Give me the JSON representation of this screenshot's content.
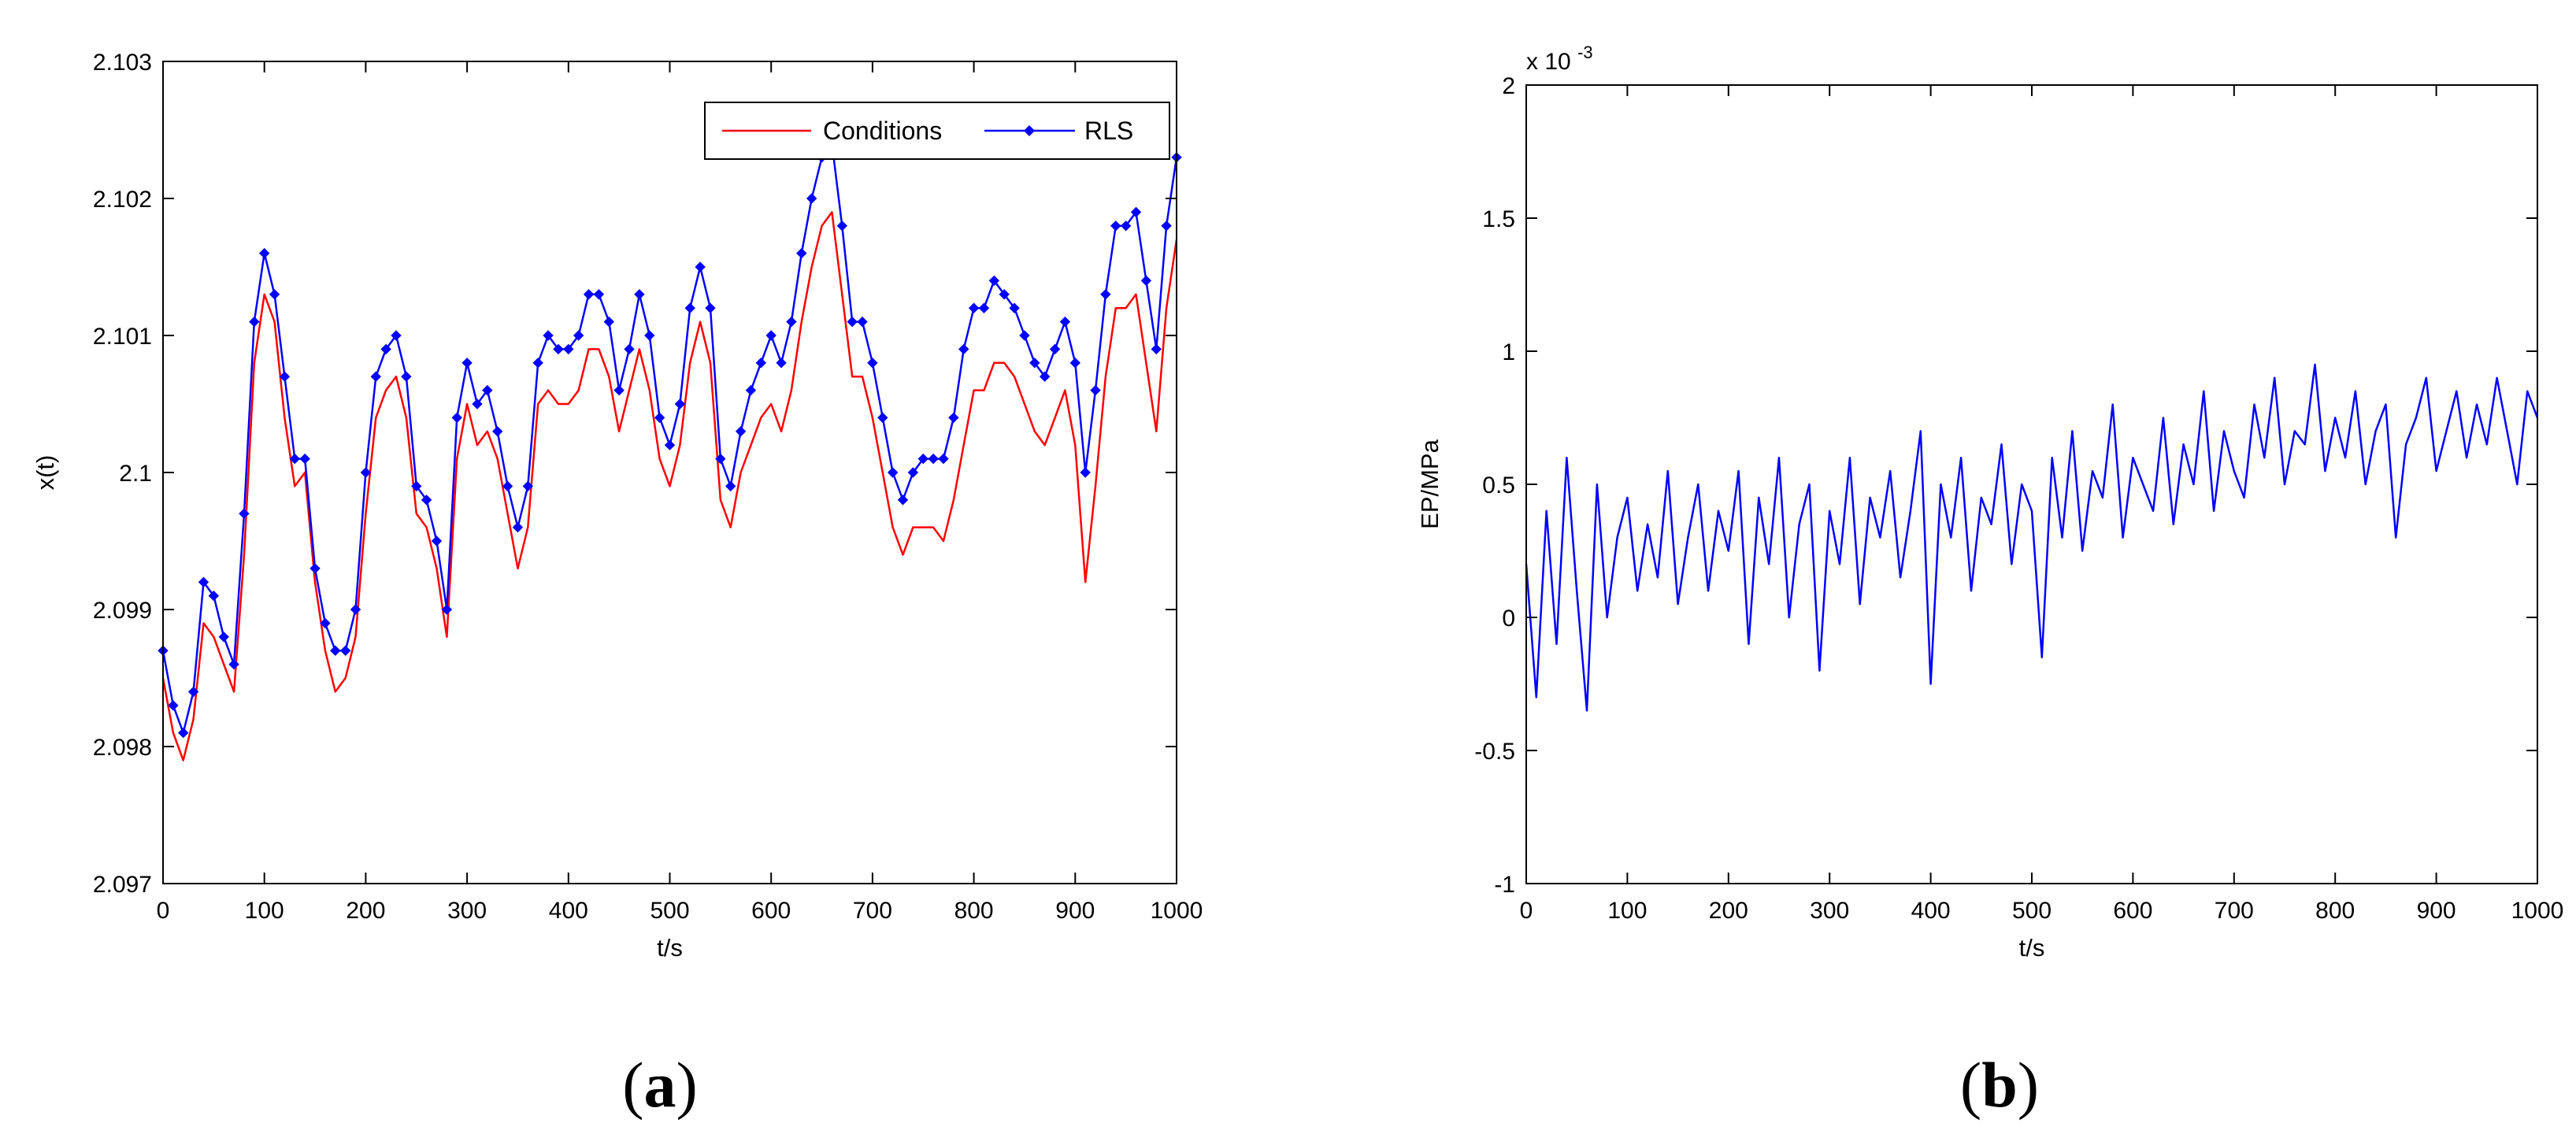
{
  "panels": [
    {
      "open": "(",
      "letter": "a",
      "close": ")"
    },
    {
      "open": "(",
      "letter": "b",
      "close": ")"
    }
  ],
  "chart_data": [
    {
      "type": "line",
      "xlabel": "t/s",
      "ylabel": "x(t)",
      "xlim": [
        0,
        1000
      ],
      "ylim": [
        2.097,
        2.103
      ],
      "xticks": [
        "0",
        "100",
        "200",
        "300",
        "400",
        "500",
        "600",
        "700",
        "800",
        "900",
        "1000"
      ],
      "yticks": [
        "2.097",
        "2.098",
        "2.099",
        "2.1",
        "2.101",
        "2.102",
        "2.103"
      ],
      "legend_position": "top-right",
      "grid": false,
      "series": [
        {
          "name": "Conditions",
          "color": "#ff0000",
          "marker": "none",
          "x": [
            0,
            10,
            20,
            30,
            40,
            50,
            60,
            70,
            80,
            90,
            100,
            110,
            120,
            130,
            140,
            150,
            160,
            170,
            180,
            190,
            200,
            210,
            220,
            230,
            240,
            250,
            260,
            270,
            280,
            290,
            300,
            310,
            320,
            330,
            340,
            350,
            360,
            370,
            380,
            390,
            400,
            410,
            420,
            430,
            440,
            450,
            460,
            470,
            480,
            490,
            500,
            510,
            520,
            530,
            540,
            550,
            560,
            570,
            580,
            590,
            600,
            610,
            620,
            630,
            640,
            650,
            660,
            670,
            680,
            690,
            700,
            710,
            720,
            730,
            740,
            750,
            760,
            770,
            780,
            790,
            800,
            810,
            820,
            830,
            840,
            850,
            860,
            870,
            880,
            890,
            900,
            910,
            920,
            930,
            940,
            950,
            960,
            970,
            980,
            990,
            1000
          ],
          "values": [
            2.0985,
            2.0981,
            2.0979,
            2.0982,
            2.0989,
            2.0988,
            2.0986,
            2.0984,
            2.0994,
            2.1008,
            2.1013,
            2.1011,
            2.1004,
            2.0999,
            2.1,
            2.0992,
            2.0987,
            2.0984,
            2.0985,
            2.0988,
            2.0997,
            2.1004,
            2.1006,
            2.1007,
            2.1004,
            2.0997,
            2.0996,
            2.0993,
            2.0988,
            2.1001,
            2.1005,
            2.1002,
            2.1003,
            2.1001,
            2.0997,
            2.0993,
            2.0996,
            2.1005,
            2.1006,
            2.1005,
            2.1005,
            2.1006,
            2.1009,
            2.1009,
            2.1007,
            2.1003,
            2.1006,
            2.1009,
            2.1006,
            2.1001,
            2.0999,
            2.1002,
            2.1008,
            2.1011,
            2.1008,
            2.0998,
            2.0996,
            2.1,
            2.1002,
            2.1004,
            2.1005,
            2.1003,
            2.1006,
            2.1011,
            2.1015,
            2.1018,
            2.1019,
            2.1013,
            2.1007,
            2.1007,
            2.1004,
            2.1,
            2.0996,
            2.0994,
            2.0996,
            2.0996,
            2.0996,
            2.0995,
            2.0998,
            2.1002,
            2.1006,
            2.1006,
            2.1008,
            2.1008,
            2.1007,
            2.1005,
            2.1003,
            2.1002,
            2.1004,
            2.1006,
            2.1002,
            2.0992,
            2.0999,
            2.1007,
            2.1012,
            2.1012,
            2.1013,
            2.1008,
            2.1003,
            2.1012,
            2.1017
          ]
        },
        {
          "name": "RLS",
          "color": "#0000ff",
          "marker": "diamond",
          "x": [
            0,
            10,
            20,
            30,
            40,
            50,
            60,
            70,
            80,
            90,
            100,
            110,
            120,
            130,
            140,
            150,
            160,
            170,
            180,
            190,
            200,
            210,
            220,
            230,
            240,
            250,
            260,
            270,
            280,
            290,
            300,
            310,
            320,
            330,
            340,
            350,
            360,
            370,
            380,
            390,
            400,
            410,
            420,
            430,
            440,
            450,
            460,
            470,
            480,
            490,
            500,
            510,
            520,
            530,
            540,
            550,
            560,
            570,
            580,
            590,
            600,
            610,
            620,
            630,
            640,
            650,
            660,
            670,
            680,
            690,
            700,
            710,
            720,
            730,
            740,
            750,
            760,
            770,
            780,
            790,
            800,
            810,
            820,
            830,
            840,
            850,
            860,
            870,
            880,
            890,
            900,
            910,
            920,
            930,
            940,
            950,
            960,
            970,
            980,
            990,
            1000
          ],
          "values": [
            2.0987,
            2.0983,
            2.0981,
            2.0984,
            2.0992,
            2.0991,
            2.0988,
            2.0986,
            2.0997,
            2.1011,
            2.1016,
            2.1013,
            2.1007,
            2.1001,
            2.1001,
            2.0993,
            2.0989,
            2.0987,
            2.0987,
            2.099,
            2.1,
            2.1007,
            2.1009,
            2.101,
            2.1007,
            2.0999,
            2.0998,
            2.0995,
            2.099,
            2.1004,
            2.1008,
            2.1005,
            2.1006,
            2.1003,
            2.0999,
            2.0996,
            2.0999,
            2.1008,
            2.101,
            2.1009,
            2.1009,
            2.101,
            2.1013,
            2.1013,
            2.1011,
            2.1006,
            2.1009,
            2.1013,
            2.101,
            2.1004,
            2.1002,
            2.1005,
            2.1012,
            2.1015,
            2.1012,
            2.1001,
            2.0999,
            2.1003,
            2.1006,
            2.1008,
            2.101,
            2.1008,
            2.1011,
            2.1016,
            2.102,
            2.1023,
            2.1024,
            2.1018,
            2.1011,
            2.1011,
            2.1008,
            2.1004,
            2.1,
            2.0998,
            2.1,
            2.1001,
            2.1001,
            2.1001,
            2.1004,
            2.1009,
            2.1012,
            2.1012,
            2.1014,
            2.1013,
            2.1012,
            2.101,
            2.1008,
            2.1007,
            2.1009,
            2.1011,
            2.1008,
            2.1,
            2.1006,
            2.1013,
            2.1018,
            2.1018,
            2.1019,
            2.1014,
            2.1009,
            2.1018,
            2.1023
          ]
        }
      ]
    },
    {
      "type": "line",
      "xlabel": "t/s",
      "ylabel": "EP/MPa",
      "y_exponent_label": "x 10",
      "y_exponent": "-3",
      "xlim": [
        0,
        1000
      ],
      "ylim": [
        -1,
        2
      ],
      "xticks": [
        "0",
        "100",
        "200",
        "300",
        "400",
        "500",
        "600",
        "700",
        "800",
        "900",
        "1000"
      ],
      "yticks": [
        "-1",
        "-0.5",
        "0",
        "0.5",
        "1",
        "1.5",
        "2"
      ],
      "grid": false,
      "series": [
        {
          "color": "#0000ff",
          "marker": "none",
          "x": [
            0,
            10,
            20,
            30,
            40,
            50,
            60,
            70,
            80,
            90,
            100,
            110,
            120,
            130,
            140,
            150,
            160,
            170,
            180,
            190,
            200,
            210,
            220,
            230,
            240,
            250,
            260,
            270,
            280,
            290,
            300,
            310,
            320,
            330,
            340,
            350,
            360,
            370,
            380,
            390,
            400,
            410,
            420,
            430,
            440,
            450,
            460,
            470,
            480,
            490,
            500,
            510,
            520,
            530,
            540,
            550,
            560,
            570,
            580,
            590,
            600,
            610,
            620,
            630,
            640,
            650,
            660,
            670,
            680,
            690,
            700,
            710,
            720,
            730,
            740,
            750,
            760,
            770,
            780,
            790,
            800,
            810,
            820,
            830,
            840,
            850,
            860,
            870,
            880,
            890,
            900,
            910,
            920,
            930,
            940,
            950,
            960,
            970,
            980,
            990,
            1000
          ],
          "values": [
            0.2,
            -0.3,
            0.4,
            -0.1,
            0.6,
            0.1,
            -0.35,
            0.5,
            0.0,
            0.3,
            0.45,
            0.1,
            0.35,
            0.15,
            0.55,
            0.05,
            0.3,
            0.5,
            0.1,
            0.4,
            0.25,
            0.55,
            -0.1,
            0.45,
            0.2,
            0.6,
            0.0,
            0.35,
            0.5,
            -0.2,
            0.4,
            0.2,
            0.6,
            0.05,
            0.45,
            0.3,
            0.55,
            0.15,
            0.4,
            0.7,
            -0.25,
            0.5,
            0.3,
            0.6,
            0.1,
            0.45,
            0.35,
            0.65,
            0.2,
            0.5,
            0.4,
            -0.15,
            0.6,
            0.3,
            0.7,
            0.25,
            0.55,
            0.45,
            0.8,
            0.3,
            0.6,
            0.5,
            0.4,
            0.75,
            0.35,
            0.65,
            0.5,
            0.85,
            0.4,
            0.7,
            0.55,
            0.45,
            0.8,
            0.6,
            0.9,
            0.5,
            0.7,
            0.65,
            0.95,
            0.55,
            0.75,
            0.6,
            0.85,
            0.5,
            0.7,
            0.8,
            0.3,
            0.65,
            0.75,
            0.9,
            0.55,
            0.7,
            0.85,
            0.6,
            0.8,
            0.65,
            0.9,
            0.7,
            0.5,
            0.85,
            0.75
          ]
        }
      ]
    }
  ]
}
